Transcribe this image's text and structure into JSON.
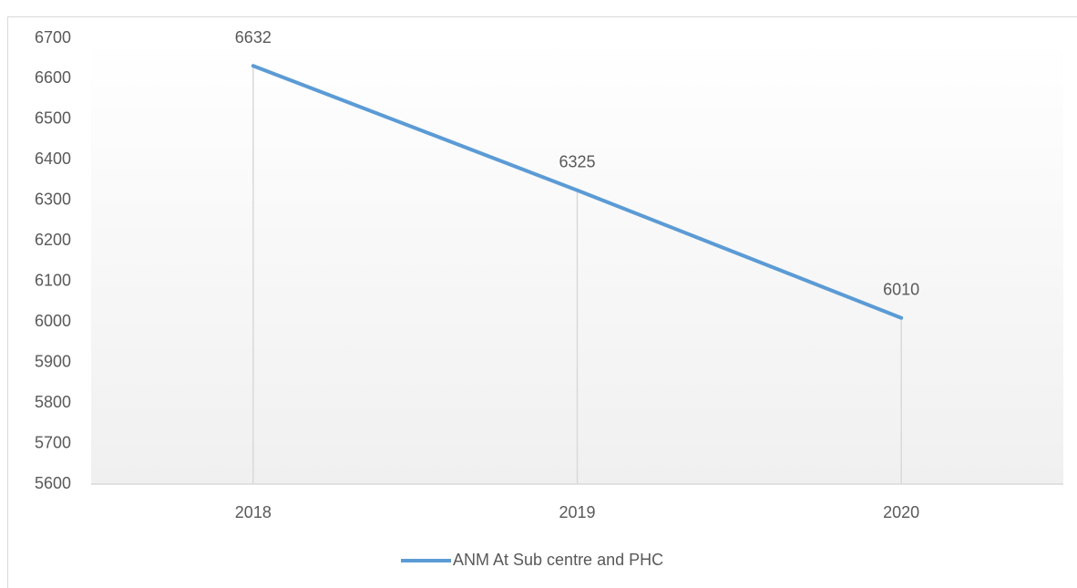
{
  "chart_data": {
    "type": "line",
    "categories": [
      "2018",
      "2019",
      "2020"
    ],
    "series": [
      {
        "name": "ANM At Sub centre and PHC",
        "color": "#5b9bd5",
        "values": [
          6632,
          6325,
          6010
        ]
      }
    ],
    "ylim": [
      5600,
      6700
    ],
    "yticks": [
      5600,
      5700,
      5800,
      5900,
      6000,
      6100,
      6200,
      6300,
      6400,
      6500,
      6600,
      6700
    ],
    "grid": false,
    "drop_lines": true,
    "data_labels": true,
    "legend": "bottom"
  }
}
